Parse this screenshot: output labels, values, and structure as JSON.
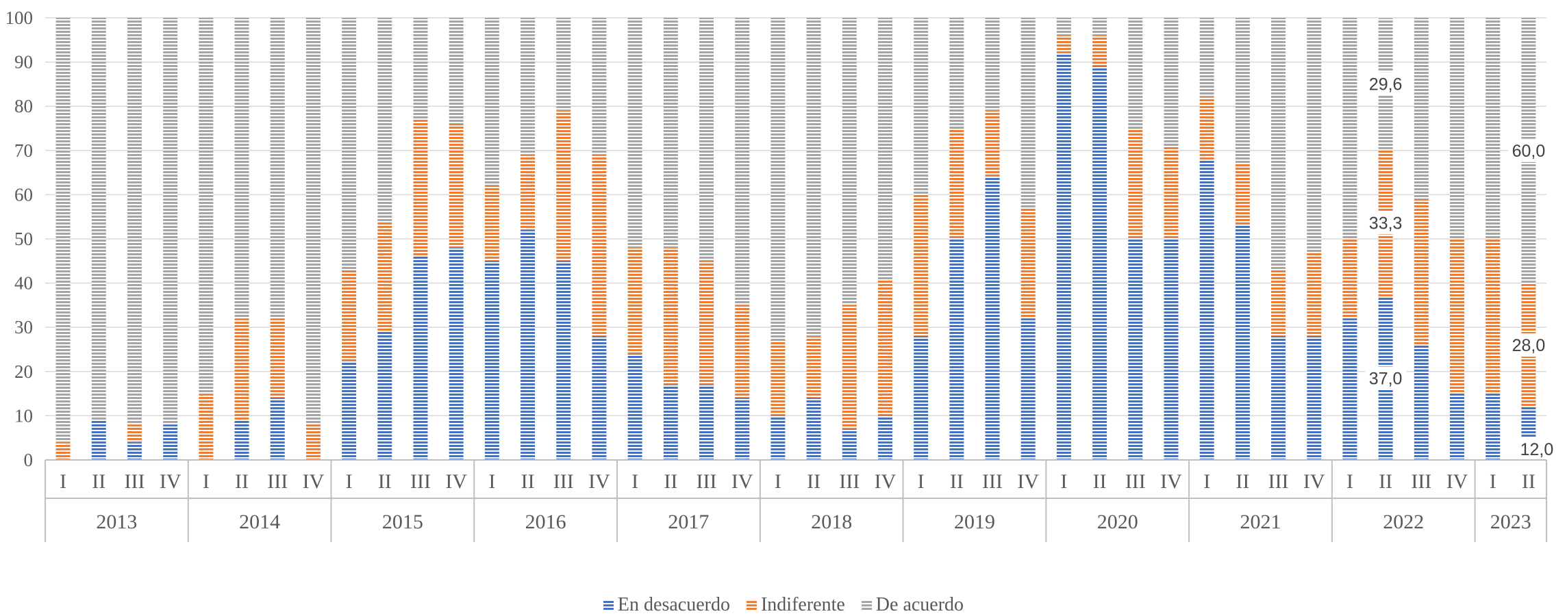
{
  "chart_data": {
    "type": "bar",
    "stacked": true,
    "ylim": [
      0,
      100
    ],
    "yticks": [
      0,
      10,
      20,
      30,
      40,
      50,
      60,
      70,
      80,
      90,
      100
    ],
    "grid": true,
    "legend_position": "bottom",
    "years": [
      {
        "label": "2013",
        "quarters": [
          "I",
          "II",
          "III",
          "IV"
        ]
      },
      {
        "label": "2014",
        "quarters": [
          "I",
          "II",
          "III",
          "IV"
        ]
      },
      {
        "label": "2015",
        "quarters": [
          "I",
          "II",
          "III",
          "IV"
        ]
      },
      {
        "label": "2016",
        "quarters": [
          "I",
          "II",
          "III",
          "IV"
        ]
      },
      {
        "label": "2017",
        "quarters": [
          "I",
          "II",
          "III",
          "IV"
        ]
      },
      {
        "label": "2018",
        "quarters": [
          "I",
          "II",
          "III",
          "IV"
        ]
      },
      {
        "label": "2019",
        "quarters": [
          "I",
          "II",
          "III",
          "IV"
        ]
      },
      {
        "label": "2020",
        "quarters": [
          "I",
          "II",
          "III",
          "IV"
        ]
      },
      {
        "label": "2021",
        "quarters": [
          "I",
          "II",
          "III",
          "IV"
        ]
      },
      {
        "label": "2022",
        "quarters": [
          "I",
          "II",
          "III",
          "IV"
        ]
      },
      {
        "label": "2023",
        "quarters": [
          "I",
          "II"
        ]
      }
    ],
    "series": [
      {
        "name": "En desacuerdo",
        "color": "#4472C4",
        "values": [
          0,
          9,
          4,
          8,
          0,
          9,
          14,
          0,
          22,
          29,
          46,
          48,
          45,
          52,
          45,
          28,
          24,
          17,
          17,
          14,
          10,
          14,
          7,
          10,
          28,
          50,
          64,
          32,
          92,
          89,
          50,
          50,
          68,
          53,
          28,
          28,
          32,
          37,
          26,
          15,
          15,
          12
        ]
      },
      {
        "name": "Indiferente",
        "color": "#ED7D31",
        "values": [
          4,
          0,
          4,
          0,
          15,
          23,
          18,
          8,
          21,
          25,
          31,
          28,
          17,
          17,
          34,
          41,
          24,
          31,
          28,
          21,
          17,
          14,
          28,
          31,
          32,
          25,
          15,
          25,
          4,
          7,
          25,
          21,
          14,
          14,
          15,
          19,
          18,
          33.3,
          33,
          35,
          35,
          28
        ]
      },
      {
        "name": "De acuerdo",
        "color": "#A5A5A5",
        "values": [
          96,
          91,
          92,
          92,
          85,
          68,
          68,
          92,
          57,
          46,
          23,
          24,
          38,
          31,
          21,
          31,
          52,
          52,
          55,
          65,
          73,
          72,
          65,
          59,
          40,
          25,
          21,
          43,
          4,
          4,
          25,
          29,
          18,
          33,
          57,
          53,
          50,
          29.6,
          41,
          50,
          50,
          60
        ]
      }
    ],
    "data_labels": [
      {
        "bar": 37,
        "series": 0,
        "text": "37,0"
      },
      {
        "bar": 37,
        "series": 1,
        "text": "33,3"
      },
      {
        "bar": 37,
        "series": 2,
        "text": "29,6"
      },
      {
        "bar": 41,
        "series": 0,
        "text": "12,0"
      },
      {
        "bar": 41,
        "series": 1,
        "text": "28,0"
      },
      {
        "bar": 41,
        "series": 2,
        "text": "60,0"
      }
    ]
  }
}
